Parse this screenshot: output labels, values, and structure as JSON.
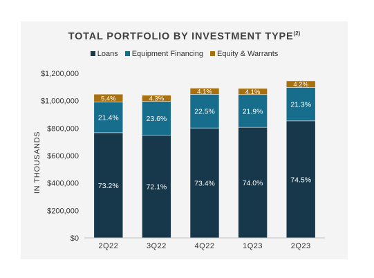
{
  "chart_data": {
    "type": "bar",
    "stacked": true,
    "title": "TOTAL PORTFOLIO BY INVESTMENT TYPE",
    "title_superscript": "(2)",
    "ylabel": "IN THOUSANDS",
    "xlabel": "",
    "categories": [
      "2Q22",
      "3Q22",
      "4Q22",
      "1Q23",
      "2Q23"
    ],
    "ylim": [
      0,
      1200000
    ],
    "yticks": [
      {
        "value": 0,
        "label": "$0"
      },
      {
        "value": 200000,
        "label": "$200,000"
      },
      {
        "value": 400000,
        "label": "$400,000"
      },
      {
        "value": 600000,
        "label": "$600,000"
      },
      {
        "value": 800000,
        "label": "$800,000"
      },
      {
        "value": 1000000,
        "label": "$1,000,000"
      },
      {
        "value": 1200000,
        "label": "$1,200,000"
      }
    ],
    "series": [
      {
        "name": "Loans",
        "color": "#17374a",
        "values": [
          767000,
          750000,
          801000,
          806000,
          853000
        ],
        "labels": [
          "73.2%",
          "72.1%",
          "73.4%",
          "74.0%",
          "74.5%"
        ]
      },
      {
        "name": "Equipment Financing",
        "color": "#166d8c",
        "values": [
          224000,
          245000,
          246000,
          239000,
          244000
        ],
        "labels": [
          "21.4%",
          "23.6%",
          "22.5%",
          "21.9%",
          "21.3%"
        ]
      },
      {
        "name": "Equity & Warrants",
        "color": "#a8700f",
        "values": [
          57000,
          45000,
          45000,
          45000,
          48000
        ],
        "labels": [
          "5.4%",
          "4.3%",
          "4.1%",
          "4.1%",
          "4.2%"
        ]
      }
    ],
    "legend_position": "top-center",
    "grid": false
  }
}
